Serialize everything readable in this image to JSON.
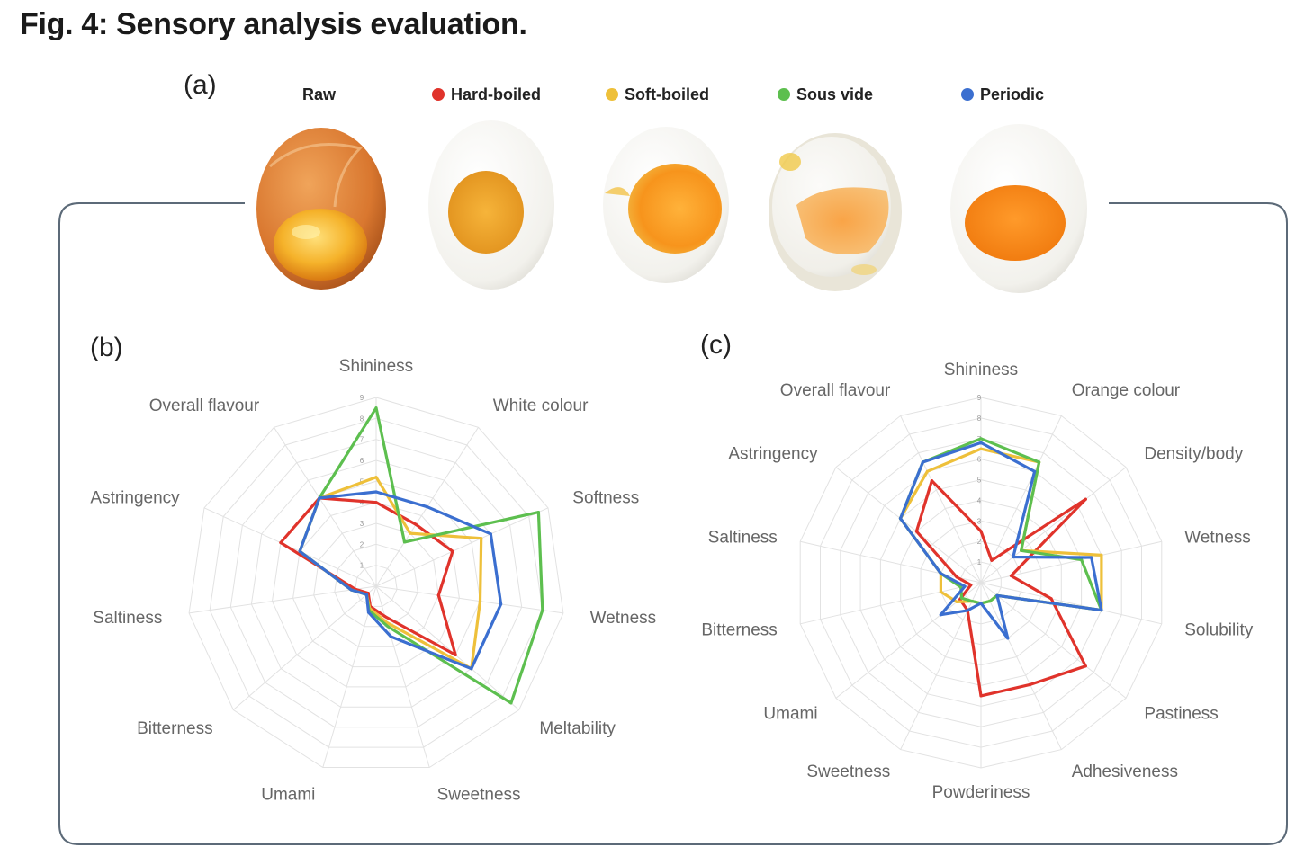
{
  "figure": {
    "title": "Fig. 4: Sensory analysis evaluation.",
    "panel_a": "(a)",
    "panel_b": "(b)",
    "panel_c": "(c)"
  },
  "colors": {
    "hard_boiled": "#e0332b",
    "soft_boiled": "#eec03a",
    "sous_vide": "#5dbf4f",
    "periodic": "#3b6fd0",
    "grid": "#e2e2e2",
    "frame": "#5c6a78"
  },
  "legend": [
    {
      "name": "Raw",
      "color": ""
    },
    {
      "name": "Hard-boiled",
      "color": "#e0332b"
    },
    {
      "name": "Soft-boiled",
      "color": "#eec03a"
    },
    {
      "name": "Sous vide",
      "color": "#5dbf4f"
    },
    {
      "name": "Periodic",
      "color": "#3b6fd0"
    }
  ],
  "eggs": [
    {
      "label": "Raw",
      "style": "raw"
    },
    {
      "label": "Hard-boiled",
      "style": "hard"
    },
    {
      "label": "Soft-boiled",
      "style": "soft"
    },
    {
      "label": "Sous vide",
      "style": "sousvide"
    },
    {
      "label": "Periodic",
      "style": "periodic"
    }
  ],
  "chart_data": [
    {
      "type": "radar",
      "panel": "(b)",
      "rmax": 9,
      "ticks": [
        1,
        2,
        3,
        4,
        5,
        6,
        7,
        8,
        9
      ],
      "axes": [
        "Shininess",
        "White colour",
        "Softness",
        "Wetness",
        "Meltability",
        "Sweetness",
        "Umami",
        "Bitterness",
        "Saltiness",
        "Astringency",
        "Overall flavour"
      ],
      "series": [
        {
          "name": "Hard-boiled",
          "color": "#e0332b",
          "values": [
            4.0,
            3.5,
            4.0,
            3.0,
            5.0,
            1.5,
            1.0,
            0.5,
            1.0,
            5.0,
            5.0
          ]
        },
        {
          "name": "Soft-boiled",
          "color": "#eec03a",
          "values": [
            5.2,
            3.0,
            5.5,
            5.0,
            6.0,
            1.8,
            1.1,
            0.6,
            1.2,
            4.0,
            5.0
          ]
        },
        {
          "name": "Sous vide",
          "color": "#5dbf4f",
          "values": [
            8.5,
            2.5,
            8.5,
            8.0,
            8.5,
            2.0,
            1.2,
            0.6,
            1.2,
            4.0,
            5.0
          ]
        },
        {
          "name": "Periodic",
          "color": "#3b6fd0",
          "values": [
            4.5,
            4.5,
            6.0,
            6.0,
            6.0,
            2.5,
            1.3,
            0.6,
            1.2,
            4.0,
            5.0
          ]
        }
      ]
    },
    {
      "type": "radar",
      "panel": "(c)",
      "rmax": 9,
      "ticks": [
        1,
        2,
        3,
        4,
        5,
        6,
        7,
        8,
        9
      ],
      "axes": [
        "Shininess",
        "Orange colour",
        "Density/body",
        "Wetness",
        "Solubility",
        "Pastiness",
        "Adhesiveness",
        "Powderiness",
        "Sweetness",
        "Umami",
        "Bitterness",
        "Saltiness",
        "Astringency",
        "Overall flavour"
      ],
      "series": [
        {
          "name": "Hard-boiled",
          "color": "#e0332b",
          "values": [
            2.5,
            1.2,
            6.5,
            1.5,
            3.5,
            6.5,
            5.5,
            5.5,
            1.5,
            1.3,
            0.5,
            1.2,
            4.0,
            5.5
          ]
        },
        {
          "name": "Soft-boiled",
          "color": "#eec03a",
          "values": [
            6.5,
            6.5,
            2.5,
            6.0,
            6.0,
            1.0,
            1.0,
            1.0,
            1.0,
            1.5,
            2.0,
            2.0,
            5.0,
            6.0
          ]
        },
        {
          "name": "Sous vide",
          "color": "#5dbf4f",
          "values": [
            7.0,
            6.5,
            2.5,
            5.0,
            6.0,
            1.0,
            1.0,
            1.0,
            1.0,
            1.2,
            1.0,
            2.0,
            5.0,
            6.5
          ]
        },
        {
          "name": "Periodic",
          "color": "#3b6fd0",
          "values": [
            6.8,
            6.0,
            2.0,
            5.5,
            6.0,
            1.0,
            3.0,
            1.0,
            1.5,
            2.5,
            0.8,
            2.0,
            5.0,
            6.5
          ]
        }
      ]
    }
  ]
}
